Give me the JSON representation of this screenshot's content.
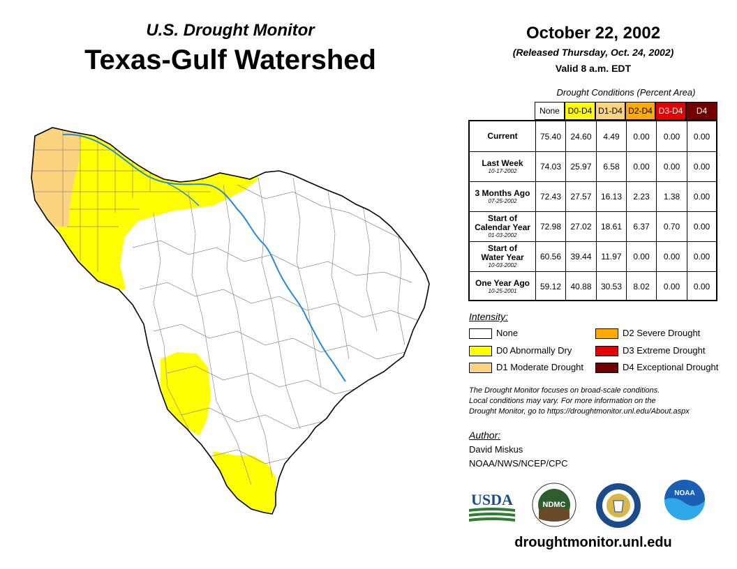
{
  "header": {
    "subtitle": "U.S. Drought Monitor",
    "title": "Texas-Gulf Watershed",
    "date": "October 22, 2002",
    "released": "(Released Thursday, Oct. 24, 2002)",
    "valid": "Valid 8 a.m. EDT"
  },
  "table": {
    "title": "Drought Conditions (Percent Area)",
    "columns": [
      {
        "label": "None",
        "bg": "#ffffff",
        "fg": "#000000"
      },
      {
        "label": "D0-D4",
        "bg": "#ffff00",
        "fg": "#000000"
      },
      {
        "label": "D1-D4",
        "bg": "#fcd37f",
        "fg": "#000000"
      },
      {
        "label": "D2-D4",
        "bg": "#ffaa00",
        "fg": "#000000"
      },
      {
        "label": "D3-D4",
        "bg": "#e60000",
        "fg": "#ffffff"
      },
      {
        "label": "D4",
        "bg": "#730000",
        "fg": "#ffffff"
      }
    ],
    "rows": [
      {
        "label": [
          "Current"
        ],
        "date": "",
        "values": [
          "75.40",
          "24.60",
          "4.49",
          "0.00",
          "0.00",
          "0.00"
        ]
      },
      {
        "label": [
          "Last Week"
        ],
        "date": "10-17-2002",
        "values": [
          "74.03",
          "25.97",
          "6.58",
          "0.00",
          "0.00",
          "0.00"
        ]
      },
      {
        "label": [
          "3 Months Ago"
        ],
        "date": "07-25-2002",
        "values": [
          "72.43",
          "27.57",
          "16.13",
          "2.23",
          "1.38",
          "0.00"
        ]
      },
      {
        "label": [
          "Start of",
          "Calendar Year"
        ],
        "date": "01-03-2002",
        "values": [
          "72.98",
          "27.02",
          "18.61",
          "6.37",
          "0.70",
          "0.00"
        ]
      },
      {
        "label": [
          "Start of",
          "Water Year"
        ],
        "date": "10-03-2002",
        "values": [
          "60.56",
          "39.44",
          "11.97",
          "0.00",
          "0.00",
          "0.00"
        ]
      },
      {
        "label": [
          "One Year Ago"
        ],
        "date": "10-25-2001",
        "values": [
          "59.12",
          "40.88",
          "30.53",
          "8.02",
          "0.00",
          "0.00"
        ]
      }
    ]
  },
  "legend": {
    "title": "Intensity:",
    "items": [
      {
        "label": "None",
        "color": "#ffffff"
      },
      {
        "label": "D0 Abnormally Dry",
        "color": "#ffff00"
      },
      {
        "label": "D1 Moderate Drought",
        "color": "#fcd37f"
      },
      {
        "label": "D2 Severe Drought",
        "color": "#ffaa00"
      },
      {
        "label": "D3 Extreme Drought",
        "color": "#e60000"
      },
      {
        "label": "D4 Exceptional Drought",
        "color": "#730000"
      }
    ]
  },
  "note": [
    "The Drought Monitor focuses on broad-scale conditions.",
    "Local conditions may vary. For more information on the",
    "Drought Monitor, go to https://droughtmonitor.unl.edu/About.aspx"
  ],
  "author": {
    "label": "Author:",
    "name": "David Miskus",
    "org": "NOAA/NWS/NCEP/CPC"
  },
  "logos": {
    "usda": "USDA",
    "ndmc": "NDMC",
    "noaa": "NOAA"
  },
  "site": "droughtmonitor.unl.edu"
}
